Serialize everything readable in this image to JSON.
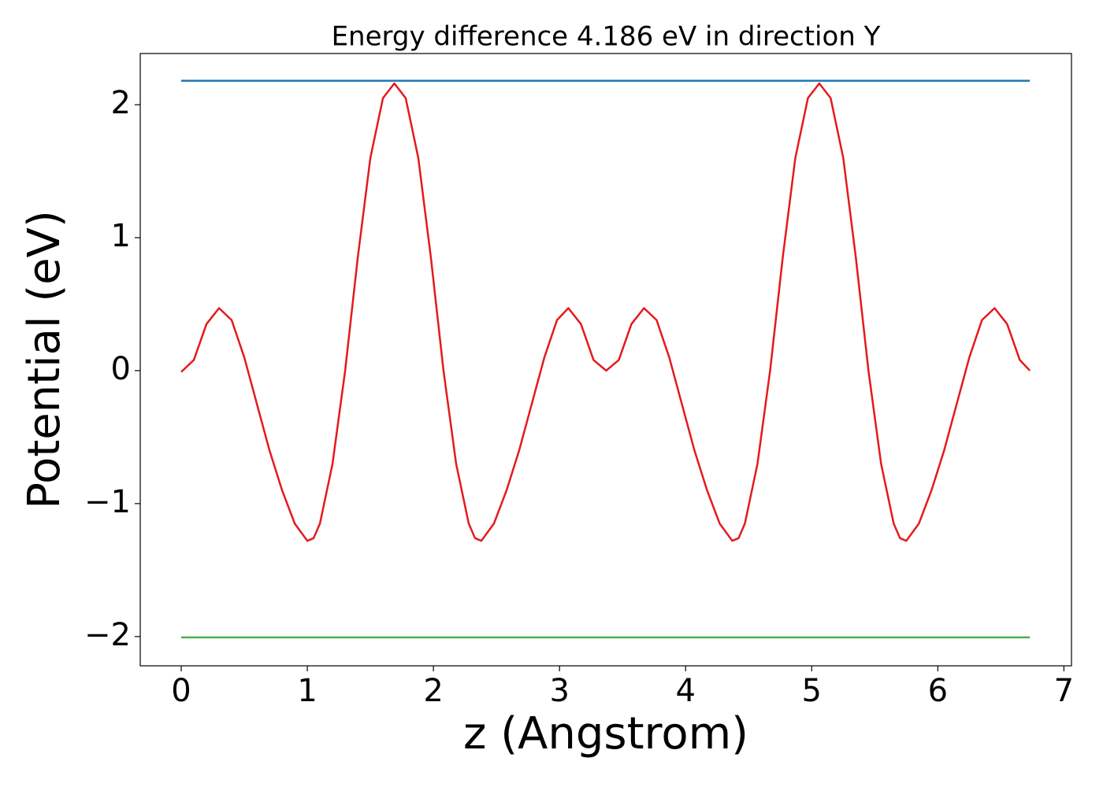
{
  "chart_data": {
    "type": "line",
    "title": "Energy difference 4.186 eV in direction Y",
    "xlabel": "z (Angstrom)",
    "ylabel": "Potential (eV)",
    "xlim": [
      -0.325,
      7.06
    ],
    "ylim": [
      -2.22,
      2.385
    ],
    "xticks": [
      0,
      1,
      2,
      3,
      4,
      5,
      6,
      7
    ],
    "yticks": [
      {
        "value": -2,
        "label": "−2"
      },
      {
        "value": -1,
        "label": "−1"
      },
      0,
      1,
      2
    ],
    "grid": false,
    "series": [
      {
        "color": "#1f77b4",
        "x": [
          0,
          6.73
        ],
        "values": [
          2.18,
          2.18
        ]
      },
      {
        "color": "#e41a1c",
        "x": [
          0,
          0.1,
          0.2,
          0.3,
          0.4,
          0.5,
          0.6,
          0.7,
          0.8,
          0.9,
          1.0,
          1.05,
          1.1,
          1.2,
          1.3,
          1.4,
          1.5,
          1.6,
          1.69,
          1.78,
          1.88,
          1.98,
          2.08,
          2.18,
          2.28,
          2.33,
          2.38,
          2.48,
          2.58,
          2.68,
          2.78,
          2.88,
          2.98,
          3.07,
          3.17,
          3.27,
          3.37,
          3.47,
          3.57,
          3.67,
          3.77,
          3.87,
          3.97,
          4.07,
          4.17,
          4.27,
          4.37,
          4.42,
          4.47,
          4.57,
          4.67,
          4.77,
          4.87,
          4.97,
          5.06,
          5.15,
          5.25,
          5.35,
          5.45,
          5.55,
          5.65,
          5.7,
          5.75,
          5.85,
          5.95,
          6.05,
          6.15,
          6.25,
          6.35,
          6.45,
          6.55,
          6.65,
          6.73
        ],
        "values": [
          -0.01,
          0.08,
          0.35,
          0.47,
          0.38,
          0.1,
          -0.25,
          -0.6,
          -0.9,
          -1.15,
          -1.28,
          -1.26,
          -1.15,
          -0.7,
          0.0,
          0.85,
          1.6,
          2.05,
          2.16,
          2.05,
          1.6,
          0.85,
          0.0,
          -0.7,
          -1.15,
          -1.26,
          -1.28,
          -1.15,
          -0.9,
          -0.6,
          -0.25,
          0.1,
          0.38,
          0.47,
          0.35,
          0.08,
          0.0,
          0.08,
          0.35,
          0.47,
          0.38,
          0.1,
          -0.25,
          -0.6,
          -0.9,
          -1.15,
          -1.28,
          -1.26,
          -1.15,
          -0.7,
          0.0,
          0.85,
          1.6,
          2.05,
          2.16,
          2.05,
          1.6,
          0.85,
          0.0,
          -0.7,
          -1.15,
          -1.26,
          -1.28,
          -1.15,
          -0.9,
          -0.6,
          -0.25,
          0.1,
          0.38,
          0.47,
          0.35,
          0.08,
          0.0
        ]
      },
      {
        "color": "#4daf4a",
        "x": [
          0,
          6.73
        ],
        "values": [
          -2.006,
          -2.006
        ]
      }
    ]
  }
}
